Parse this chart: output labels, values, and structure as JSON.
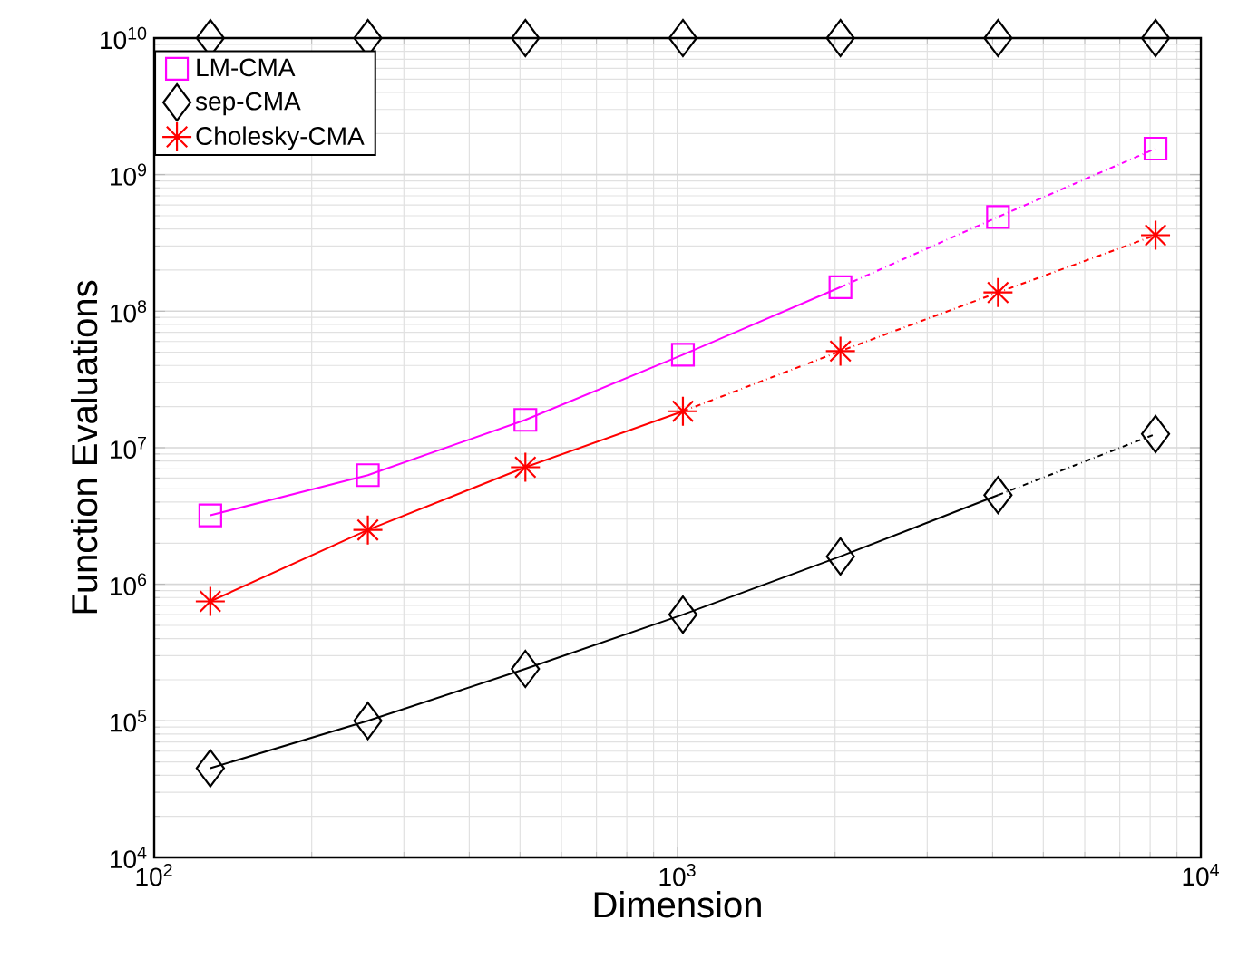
{
  "chart_data": {
    "type": "line",
    "xlabel": "Dimension",
    "ylabel": "Function Evaluations",
    "x": [
      128,
      256,
      512,
      1024,
      2048,
      4096,
      8192
    ],
    "log": "xy",
    "grid": true,
    "legend": "top left",
    "xlim": [
      100,
      10000
    ],
    "ylim": [
      10000,
      10000000000
    ],
    "xticks": [
      {
        "value": 100,
        "label": "10$^{2}$"
      },
      {
        "value": 1000,
        "label": "10$^{3}$"
      },
      {
        "value": 10000,
        "label": "10$^{4}$"
      }
    ],
    "yticks": [
      {
        "value": 10000,
        "label": "10$^{4}$"
      },
      {
        "value": 100000,
        "label": "10$^{5}$"
      },
      {
        "value": 1000000,
        "label": "10$^{6}$"
      },
      {
        "value": 10000000,
        "label": "10$^{7}$"
      },
      {
        "value": 100000000,
        "label": "10$^{8}$"
      },
      {
        "value": 1000000000,
        "label": "10$^{9}$"
      },
      {
        "value": 10000000000,
        "label": "10$^{10}$"
      }
    ],
    "series": [
      {
        "name": "LM-CMA",
        "type": "scatter",
        "color": "#ff00ff",
        "marker": "square",
        "values": [
          3200000,
          6300000,
          16000000,
          48000000,
          150000000,
          490000000,
          1550000000
        ]
      },
      {
        "name": "sep-CMA",
        "type": "scatter",
        "color": "#000000",
        "marker": "diamond",
        "values": [
          45000,
          100000,
          240000,
          600000,
          1600000,
          4500000,
          12600000
        ]
      },
      {
        "name": "Cholesky-CMA",
        "type": "scatter",
        "color": "#ff0000",
        "marker": "cross",
        "values": [
          750000,
          2500000,
          7200000,
          18500000,
          51000000,
          137000000,
          360000000
        ]
      },
      {
        "type": "scatter",
        "color": "#000000",
        "marker": "diamond",
        "values": [
          10000000000,
          10000000000,
          10000000000,
          10000000000,
          10000000000,
          10000000000,
          10000000000
        ]
      },
      {
        "color": "#ff00ff",
        "marker": "none",
        "line_style": "solid",
        "values": [
          3200000,
          6300000,
          16000000,
          48000000,
          150000000,
          null,
          null
        ]
      },
      {
        "color": "#ff00ff",
        "marker": "none",
        "line_style": "dashdot",
        "values": [
          null,
          null,
          null,
          null,
          150000000,
          490000000,
          1550000000
        ]
      },
      {
        "color": "#000000",
        "marker": "none",
        "line_style": "solid",
        "values": [
          45000,
          100000,
          240000,
          600000,
          1600000,
          4500000,
          null
        ]
      },
      {
        "color": "#000000",
        "marker": "none",
        "line_style": "dashdot",
        "values": [
          null,
          null,
          null,
          null,
          null,
          4500000,
          12600000
        ]
      },
      {
        "color": "#ff0000",
        "marker": "none",
        "line_style": "solid",
        "values": [
          750000,
          2500000,
          7200000,
          18500000,
          null,
          null,
          null
        ]
      },
      {
        "color": "#ff0000",
        "marker": "none",
        "line_style": "dashdot",
        "values": [
          null,
          null,
          null,
          18500000,
          51000000,
          137000000,
          360000000
        ]
      }
    ]
  }
}
